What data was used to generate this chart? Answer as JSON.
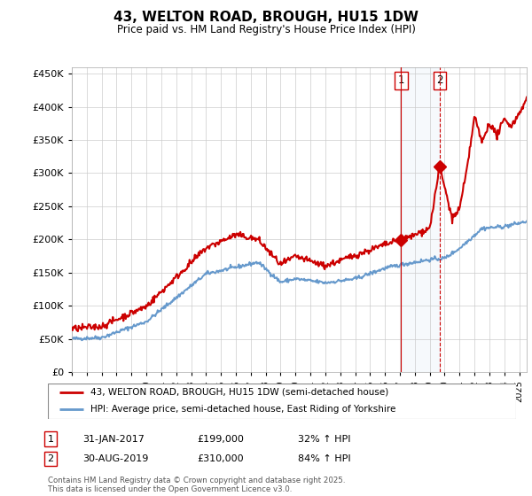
{
  "title": "43, WELTON ROAD, BROUGH, HU15 1DW",
  "subtitle": "Price paid vs. HM Land Registry's House Price Index (HPI)",
  "legend_line1": "43, WELTON ROAD, BROUGH, HU15 1DW (semi-detached house)",
  "legend_line2": "HPI: Average price, semi-detached house, East Riding of Yorkshire",
  "sale1_date": "31-JAN-2017",
  "sale1_price": "£199,000",
  "sale1_hpi": "32% ↑ HPI",
  "sale1_year": 2017.08,
  "sale1_value": 199000,
  "sale2_date": "30-AUG-2019",
  "sale2_price": "£310,000",
  "sale2_hpi": "84% ↑ HPI",
  "sale2_year": 2019.67,
  "sale2_value": 310000,
  "footer": "Contains HM Land Registry data © Crown copyright and database right 2025.\nThis data is licensed under the Open Government Licence v3.0.",
  "property_color": "#cc0000",
  "hpi_color": "#6699cc",
  "band_color": "#dde8f5",
  "ylim": [
    0,
    460000
  ],
  "xlim_start": 1995.0,
  "xlim_end": 2025.5
}
